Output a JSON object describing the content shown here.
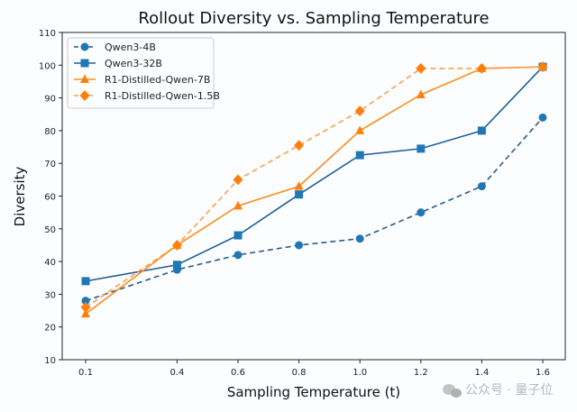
{
  "chart_data": {
    "type": "line",
    "title": "Rollout Diversity vs. Sampling Temperature",
    "xlabel": "Sampling Temperature (t)",
    "ylabel": "Diversity",
    "x": [
      0.1,
      0.4,
      0.6,
      0.8,
      1.0,
      1.2,
      1.4,
      1.6
    ],
    "x_tick_labels": [
      "0.1",
      "0.4",
      "0.6",
      "0.8",
      "1.0",
      "1.2",
      "1.4",
      "1.6"
    ],
    "ylim": [
      10,
      110
    ],
    "y_ticks": [
      10,
      20,
      30,
      40,
      50,
      60,
      70,
      80,
      90,
      100,
      110
    ],
    "y_tick_labels": [
      "10",
      "20",
      "30",
      "40",
      "50",
      "60",
      "70",
      "80",
      "90",
      "100",
      "110"
    ],
    "grid": false,
    "legend_position": "top-left",
    "series": [
      {
        "name": "Qwen3-4B",
        "values": [
          28,
          37.5,
          42,
          45,
          47,
          55,
          63,
          84
        ],
        "color": "#1f77b4",
        "line_color": "#2a5a8a",
        "dashed": true,
        "marker": "circle"
      },
      {
        "name": "Qwen3-32B",
        "values": [
          34,
          39,
          48,
          60.5,
          72.5,
          74.5,
          80,
          99.5
        ],
        "color": "#1f77b4",
        "line_color": "#1f5f99",
        "dashed": false,
        "marker": "square"
      },
      {
        "name": "R1-Distilled-Qwen-7B",
        "values": [
          24,
          45,
          57,
          63,
          80,
          91,
          99,
          99.5
        ],
        "color": "#ff7f0e",
        "line_color": "#ff8c1a",
        "dashed": false,
        "marker": "triangle"
      },
      {
        "name": "R1-Distilled-Qwen-1.5B",
        "values": [
          26,
          45,
          65,
          75.5,
          86,
          99,
          99,
          99.5
        ],
        "color": "#ff7f0e",
        "line_color": "#f5a055",
        "dashed": true,
        "marker": "diamond"
      }
    ]
  },
  "watermark": {
    "text": "公众号 · 量子位",
    "icon": "wechat-icon"
  }
}
